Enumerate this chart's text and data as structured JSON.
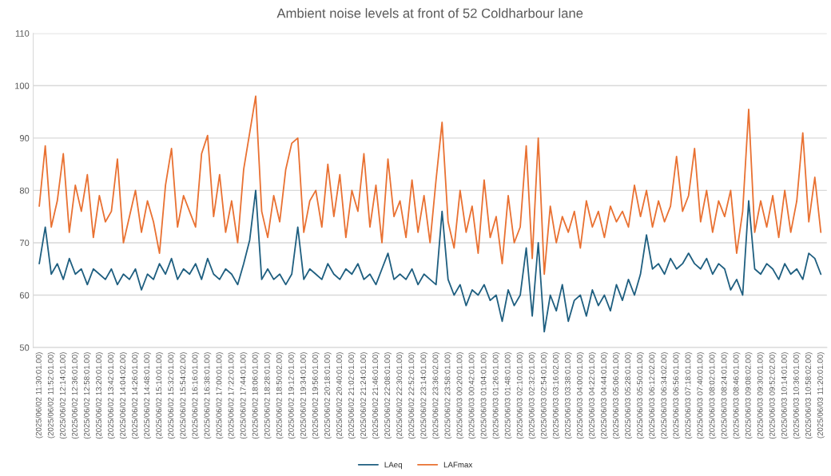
{
  "chart_data": {
    "type": "line",
    "title": "Ambient noise levels at front of 52 Coldharbour lane",
    "categories": [
      "(2025/06/02 11:30:01.00)",
      null,
      "(2025/06/02 11:52:01.00)",
      null,
      "(2025/06/02 12:14:01.00)",
      null,
      "(2025/06/02 12:36:01.00)",
      null,
      "(2025/06/02 12:58:01.00)",
      null,
      "(2025/06/02 13:20:01.00)",
      null,
      "(2025/06/02 13:42:01.00)",
      null,
      "(2025/06/02 14:04:02.00)",
      null,
      "(2025/06/02 14:26:01.00)",
      null,
      "(2025/06/02 14:48:01.00)",
      null,
      "(2025/06/02 15:10:01.00)",
      null,
      "(2025/06/02 15:32:01.00)",
      null,
      "(2025/06/02 15:54:02.00)",
      null,
      "(2025/06/02 16:16:01.00)",
      null,
      "(2025/06/02 16:38:01.00)",
      null,
      "(2025/06/02 17:00:01.00)",
      null,
      "(2025/06/02 17:22:01.00)",
      null,
      "(2025/06/02 17:44:01.00)",
      null,
      "(2025/06/02 18:06:01.00)",
      null,
      "(2025/06/02 18:28:01.00)",
      null,
      "(2025/06/02 18:50:02.00)",
      null,
      "(2025/06/02 19:12:01.00)",
      null,
      "(2025/06/02 19:34:01.00)",
      null,
      "(2025/06/02 19:56:01.00)",
      null,
      "(2025/06/02 20:18:01.00)",
      null,
      "(2025/06/02 20:40:01.00)",
      null,
      "(2025/06/02 21:02:01.00)",
      null,
      "(2025/06/02 21:24:01.00)",
      null,
      "(2025/06/02 21:46:01.00)",
      null,
      "(2025/06/02 22:08:01.00)",
      null,
      "(2025/06/02 22:30:01.00)",
      null,
      "(2025/06/02 22:52:01.00)",
      null,
      "(2025/06/02 23:14:01.00)",
      null,
      "(2025/06/02 23:36:02.00)",
      null,
      "(2025/06/02 23:58:01.00)",
      null,
      "(2025/06/03 00:20:01.00)",
      null,
      "(2025/06/03 00:42:01.00)",
      null,
      "(2025/06/03 01:04:01.00)",
      null,
      "(2025/06/03 01:26:01.00)",
      null,
      "(2025/06/03 01:48:01.00)",
      null,
      "(2025/06/03 02:10:01.00)",
      null,
      "(2025/06/03 02:32:01.00)",
      null,
      "(2025/06/03 02:54:01.00)",
      null,
      "(2025/06/03 03:16:02.00)",
      null,
      "(2025/06/03 03:38:01.00)",
      null,
      "(2025/06/03 04:00:01.00)",
      null,
      "(2025/06/03 04:22:01.00)",
      null,
      "(2025/06/03 04:44:01.00)",
      null,
      "(2025/06/03 05:06:01.00)",
      null,
      "(2025/06/03 05:28:01.00)",
      null,
      "(2025/06/03 05:50:01.00)",
      null,
      "(2025/06/03 06:12:02.00)",
      null,
      "(2025/06/03 06:34:02.00)",
      null,
      "(2025/06/03 06:56:01.00)",
      null,
      "(2025/06/03 07:18:01.00)",
      null,
      "(2025/06/03 07:40:01.00)",
      null,
      "(2025/06/03 08:02:01.00)",
      null,
      "(2025/06/03 08:24:01.00)",
      null,
      "(2025/06/03 08:46:01.00)",
      null,
      "(2025/06/03 09:08:02.00)",
      null,
      "(2025/06/03 09:30:01.00)",
      null,
      "(2025/06/03 09:52:02.00)",
      null,
      "(2025/06/03 10:14:01.00)",
      null,
      "(2025/06/03 10:36:01.00)",
      null,
      "(2025/06/03 10:58:02.00)",
      null,
      "(2025/06/03 11:20:01.00)"
    ],
    "series": [
      {
        "name": "LAeq",
        "color": "#1f5f80",
        "values": [
          66,
          73,
          64,
          66,
          63,
          67,
          64,
          65,
          62,
          65,
          64,
          63,
          65,
          62,
          64,
          63,
          65,
          61,
          64,
          63,
          66,
          64,
          67,
          63,
          65,
          64,
          66,
          63,
          67,
          64,
          63,
          65,
          64,
          62,
          66,
          70.5,
          80,
          63,
          65,
          63,
          64,
          62,
          64,
          73,
          63,
          65,
          64,
          63,
          66,
          64,
          63,
          65,
          64,
          66,
          63,
          64,
          62,
          65,
          68,
          63,
          64,
          63,
          65,
          62,
          64,
          63,
          62,
          76,
          63,
          60,
          62,
          58,
          61,
          60,
          62,
          59,
          60,
          55,
          61,
          58,
          60,
          69,
          56,
          70,
          53,
          60,
          57,
          62,
          55,
          59,
          60,
          56,
          61,
          58,
          60,
          57,
          62,
          59,
          63,
          60,
          64,
          71.5,
          65,
          66,
          64,
          67,
          65,
          66,
          68,
          66,
          65,
          67,
          64,
          66,
          65,
          61,
          63,
          60,
          78,
          65,
          64,
          66,
          65,
          63,
          66,
          64,
          65,
          63,
          68,
          67,
          64
        ]
      },
      {
        "name": "LAFmax",
        "color": "#e97132",
        "values": [
          77,
          88.5,
          73,
          78,
          87,
          72,
          81,
          76,
          83,
          71,
          79,
          74,
          76,
          86,
          70,
          75,
          80,
          72,
          78,
          74,
          68,
          81,
          88,
          73,
          79,
          76,
          73,
          87,
          90.5,
          75,
          83,
          72,
          78,
          70,
          84,
          91,
          98,
          76,
          71,
          79,
          74,
          84,
          89,
          90,
          72,
          78,
          80,
          73,
          85,
          75,
          83,
          71,
          80,
          76,
          87,
          73,
          81,
          70,
          86,
          75,
          78,
          71,
          82,
          72,
          79,
          70,
          82,
          93,
          74,
          69,
          80,
          72,
          77,
          68,
          82,
          71,
          75,
          66,
          79,
          70,
          73,
          88.5,
          67,
          90,
          64,
          77,
          70,
          75,
          72,
          76,
          69,
          78,
          73,
          76,
          71,
          77,
          74,
          76,
          73,
          81,
          75,
          80,
          73,
          78,
          74,
          77,
          86.5,
          76,
          79,
          88,
          74,
          80,
          72,
          78,
          75,
          80,
          68,
          76,
          95.5,
          72,
          78,
          73,
          79,
          71,
          80,
          72,
          78,
          91,
          74,
          82.5,
          72
        ]
      }
    ],
    "ylim": [
      50,
      110
    ],
    "yticks": [
      50,
      60,
      70,
      80,
      90,
      100,
      110
    ],
    "grid": "y",
    "legend": "bottom",
    "line_style": "solid",
    "marker": "none"
  }
}
